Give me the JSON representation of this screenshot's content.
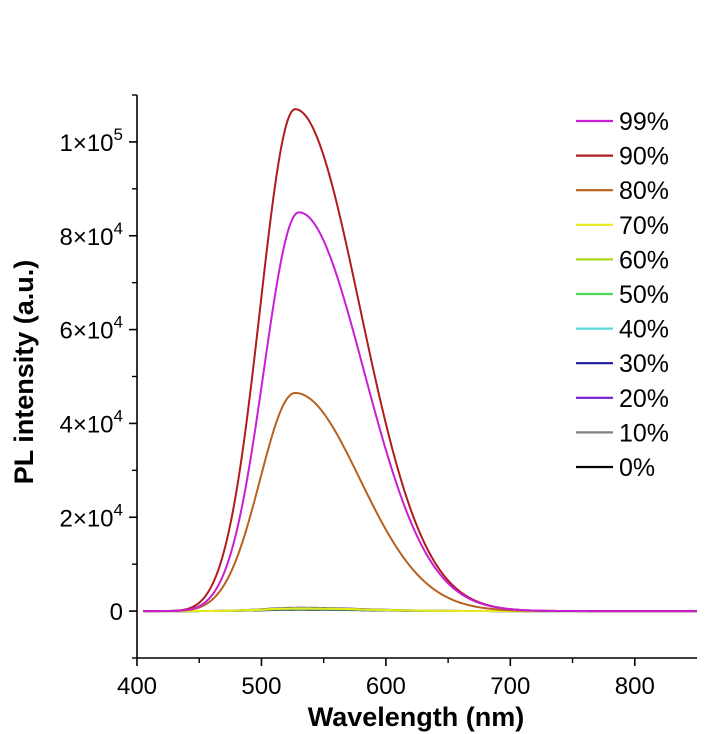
{
  "chart_data": {
    "type": "line",
    "title": "",
    "xlabel": "Wavelength (nm)",
    "ylabel": "PL intensity (a.u.)",
    "xlim": [
      400,
      850
    ],
    "ylim": [
      -10000,
      110000
    ],
    "xticks": [
      400,
      500,
      600,
      700,
      800
    ],
    "xtick_labels": [
      "400",
      "500",
      "600",
      "700",
      "800"
    ],
    "yticks": [
      0,
      20000,
      40000,
      60000,
      80000,
      100000
    ],
    "ytick_labels": [
      {
        "base": "0",
        "exp": ""
      },
      {
        "base": "2×10",
        "exp": "4"
      },
      {
        "base": "4×10",
        "exp": "4"
      },
      {
        "base": "6×10",
        "exp": "4"
      },
      {
        "base": "8×10",
        "exp": "4"
      },
      {
        "base": "1×10",
        "exp": "5"
      }
    ],
    "grid": false,
    "legend_position": "top-right",
    "series": [
      {
        "name": "99%",
        "color": "#c81fd6",
        "peak_wavelength": 530,
        "peak_intensity": 85000
      },
      {
        "name": "90%",
        "color": "#b01c1c",
        "peak_wavelength": 527,
        "peak_intensity": 107000
      },
      {
        "name": "80%",
        "color": "#b8601e",
        "peak_wavelength": 527,
        "peak_intensity": 46500
      },
      {
        "name": "70%",
        "color": "#e8e81a",
        "peak_wavelength": 530,
        "peak_intensity": 600
      },
      {
        "name": "60%",
        "color": "#a8d81e",
        "peak_wavelength": 530,
        "peak_intensity": 550
      },
      {
        "name": "50%",
        "color": "#4ed85a",
        "peak_wavelength": 530,
        "peak_intensity": 500
      },
      {
        "name": "40%",
        "color": "#5ad8d8",
        "peak_wavelength": 530,
        "peak_intensity": 450
      },
      {
        "name": "30%",
        "color": "#1a1aa0",
        "peak_wavelength": 530,
        "peak_intensity": 700
      },
      {
        "name": "20%",
        "color": "#7a1ad8",
        "peak_wavelength": 530,
        "peak_intensity": 500
      },
      {
        "name": "10%",
        "color": "#7f7f7f",
        "peak_wavelength": 530,
        "peak_intensity": 400
      },
      {
        "name": "0%",
        "color": "#000000",
        "peak_wavelength": 530,
        "peak_intensity": 300
      }
    ],
    "curve_shape": {
      "x_start": 405,
      "x_end": 850,
      "onset": 440,
      "left_width": 28,
      "right_width": 52,
      "tail_decay": 10
    }
  }
}
